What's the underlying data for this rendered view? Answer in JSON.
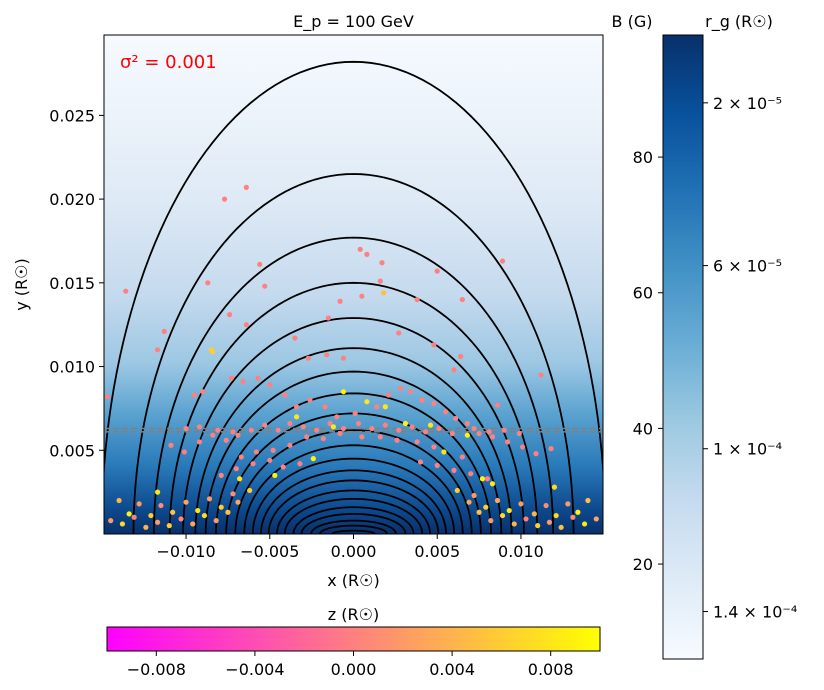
{
  "chart_data": {
    "type": "scatter",
    "title": "E_p = 100 GeV",
    "annotation": {
      "text": "σ² = 0.001",
      "color": "#ff0000"
    },
    "xlabel": "x (R☉)",
    "ylabel": "y (R☉)",
    "xlim": [
      -0.0149,
      0.0149
    ],
    "ylim": [
      0.0,
      0.0298
    ],
    "xticks": [
      -0.01,
      -0.005,
      0.0,
      0.005,
      0.01
    ],
    "xtick_labels": [
      "−0.010",
      "−0.005",
      "0.000",
      "0.005",
      "0.010"
    ],
    "yticks": [
      0.005,
      0.01,
      0.015,
      0.02,
      0.025
    ],
    "ytick_labels": [
      "0.005",
      "0.010",
      "0.015",
      "0.020",
      "0.025"
    ],
    "field_lines": {
      "description": "closed dipole-like magnetic loops, half-width proportional to sqrt(apex height)",
      "apex_heights": [
        0.0282,
        0.0215,
        0.0177,
        0.015,
        0.0129,
        0.0111,
        0.0097,
        0.0084,
        0.0072,
        0.0062,
        0.0053,
        0.0045,
        0.0038,
        0.0032,
        0.0026,
        0.0021,
        0.0016,
        0.0012,
        0.0008,
        0.0005,
        0.0002
      ],
      "color": "#000000"
    },
    "dashed_lines": [
      {
        "y": 0.0063,
        "color": "#808080",
        "style": "dashed"
      },
      {
        "y": 0.0061,
        "color": "#808080",
        "style": "dashed"
      }
    ],
    "particles_colored_by": "z (R☉)",
    "particles": [
      [
        -0.0136,
        0.0145,
        0.0
      ],
      [
        -0.0113,
        0.0121,
        0.0
      ],
      [
        -0.0117,
        0.011,
        0.0
      ],
      [
        -0.0147,
        0.0082,
        0.0
      ],
      [
        -0.0087,
        0.015,
        0.0
      ],
      [
        -0.0085,
        0.011,
        0.006
      ],
      [
        -0.0074,
        0.0131,
        0.0
      ],
      [
        -0.0064,
        0.0125,
        0.0
      ],
      [
        -0.0077,
        0.02,
        0.0
      ],
      [
        -0.0064,
        0.0207,
        0.0
      ],
      [
        -0.0056,
        0.0161,
        0.0
      ],
      [
        -0.0053,
        0.0148,
        0.0
      ],
      [
        -0.0035,
        0.0117,
        0.0
      ],
      [
        -0.0027,
        0.0105,
        0.0
      ],
      [
        -0.0016,
        0.0107,
        0.0
      ],
      [
        -0.0006,
        0.0105,
        0.0
      ],
      [
        -0.0008,
        0.0139,
        0.0
      ],
      [
        -0.0015,
        0.0129,
        0.0
      ],
      [
        0.0005,
        0.0142,
        0.0
      ],
      [
        0.0004,
        0.017,
        0.0
      ],
      [
        0.0008,
        0.0167,
        0.0
      ],
      [
        0.0017,
        0.0162,
        0.0
      ],
      [
        0.0016,
        0.0151,
        0.0
      ],
      [
        0.0018,
        0.0144,
        0.005
      ],
      [
        0.0027,
        0.012,
        0.0
      ],
      [
        0.0038,
        0.014,
        0.0
      ],
      [
        0.0048,
        0.0113,
        0.0
      ],
      [
        0.005,
        0.0157,
        0.0
      ],
      [
        0.0065,
        0.014,
        0.0
      ],
      [
        0.0064,
        0.0106,
        0.0
      ],
      [
        0.006,
        0.0098,
        0.0
      ],
      [
        0.0089,
        0.0163,
        0.0
      ],
      [
        0.0112,
        0.0095,
        0.0
      ],
      [
        0.0086,
        0.0077,
        0.0
      ],
      [
        -0.009,
        0.0085,
        0.0
      ],
      [
        -0.0095,
        0.0083,
        0.0
      ],
      [
        -0.0073,
        0.0093,
        0.0
      ],
      [
        -0.0066,
        0.0091,
        0.0
      ],
      [
        -0.0057,
        0.0093,
        0.0
      ],
      [
        -0.005,
        0.0089,
        0.0
      ],
      [
        -0.0041,
        0.0083,
        0.0
      ],
      [
        -0.0034,
        0.0076,
        0.0
      ],
      [
        -0.0026,
        0.008,
        0.0
      ],
      [
        -0.0017,
        0.0076,
        0.0
      ],
      [
        -0.001,
        0.007,
        0.0
      ],
      [
        0.0001,
        0.0072,
        0.0
      ],
      [
        0.0008,
        0.0079,
        0.008
      ],
      [
        0.0014,
        0.0076,
        0.0
      ],
      [
        0.0021,
        0.0083,
        0.0
      ],
      [
        0.0028,
        0.0087,
        0.0
      ],
      [
        0.0034,
        0.0085,
        0.0
      ],
      [
        0.0041,
        0.008,
        0.0
      ],
      [
        0.0048,
        0.0078,
        0.0
      ],
      [
        0.0055,
        0.0073,
        0.0
      ],
      [
        0.0061,
        0.0069,
        0.0
      ],
      [
        0.0068,
        0.0066,
        0.0
      ],
      [
        0.0075,
        0.006,
        0.0
      ],
      [
        0.0083,
        0.0058,
        0.0
      ],
      [
        0.0092,
        0.0055,
        0.0
      ],
      [
        0.0101,
        0.0052,
        0.0
      ],
      [
        0.0109,
        0.0048,
        0.0
      ],
      [
        0.0118,
        0.0051,
        0.0
      ],
      [
        -0.0109,
        0.0053,
        0.0
      ],
      [
        -0.0101,
        0.0049,
        0.0
      ],
      [
        -0.0092,
        0.0055,
        0.0
      ],
      [
        -0.0084,
        0.0059,
        0.0
      ],
      [
        -0.0076,
        0.0056,
        0.0
      ],
      [
        -0.0069,
        0.0059,
        0.0
      ],
      [
        -0.0061,
        0.0062,
        0.0
      ],
      [
        -0.0053,
        0.0065,
        0.0
      ],
      [
        -0.0045,
        0.0062,
        0.0
      ],
      [
        -0.0038,
        0.0066,
        0.0
      ],
      [
        -0.003,
        0.0064,
        0.0
      ],
      [
        -0.0022,
        0.0062,
        0.0
      ],
      [
        -0.0014,
        0.0066,
        0.0
      ],
      [
        -0.0006,
        0.0063,
        0.0
      ],
      [
        0.0003,
        0.0066,
        0.0
      ],
      [
        0.0011,
        0.0063,
        0.0
      ],
      [
        0.0019,
        0.0065,
        0.0
      ],
      [
        0.0027,
        0.0062,
        0.0
      ],
      [
        0.0035,
        0.0064,
        0.0
      ],
      [
        0.0043,
        0.0061,
        0.0
      ],
      [
        0.0051,
        0.0063,
        0.0
      ],
      [
        0.0059,
        0.006,
        0.0
      ],
      [
        -0.01,
        0.0063,
        0.0
      ],
      [
        -0.0092,
        0.0064,
        0.0
      ],
      [
        -0.0081,
        0.0062,
        0.0
      ],
      [
        -0.0072,
        0.0061,
        0.0
      ],
      [
        0.0072,
        0.0063,
        0.0
      ],
      [
        0.0081,
        0.0061,
        0.0
      ],
      [
        0.009,
        0.0062,
        0.0
      ],
      [
        0.0099,
        0.006,
        0.0
      ],
      [
        -0.0028,
        0.0058,
        0.0
      ],
      [
        -0.0018,
        0.0057,
        0.0
      ],
      [
        -0.0008,
        0.006,
        0.0
      ],
      [
        0.0005,
        0.0058,
        0.0
      ],
      [
        0.0016,
        0.0058,
        0.0
      ],
      [
        0.0026,
        0.0056,
        0.0
      ],
      [
        0.0038,
        0.0055,
        0.0
      ],
      [
        0.0048,
        0.0052,
        0.0
      ],
      [
        -0.0038,
        0.0053,
        0.0
      ],
      [
        -0.0048,
        0.005,
        0.0
      ],
      [
        -0.0058,
        0.0049,
        0.0
      ],
      [
        -0.0067,
        0.0046,
        0.0
      ],
      [
        -0.005,
        0.0044,
        0.0
      ],
      [
        -0.006,
        0.0042,
        0.0
      ],
      [
        -0.007,
        0.0039,
        0.0
      ],
      [
        -0.0079,
        0.0035,
        0.0
      ],
      [
        -0.0042,
        0.004,
        0.0
      ],
      [
        -0.0032,
        0.0042,
        0.0
      ],
      [
        0.004,
        0.0043,
        0.0
      ],
      [
        0.005,
        0.0041,
        0.0
      ],
      [
        0.006,
        0.0038,
        0.0
      ],
      [
        0.007,
        0.0036,
        0.0
      ],
      [
        0.008,
        0.0033,
        0.0
      ],
      [
        0.0065,
        0.0046,
        0.0
      ],
      [
        -0.0084,
        0.0109,
        0.006
      ],
      [
        -0.0006,
        0.0085,
        0.009
      ],
      [
        0.0019,
        0.0076,
        0.008
      ],
      [
        -0.0034,
        0.007,
        0.008
      ],
      [
        -0.0024,
        0.0045,
        0.009
      ],
      [
        0.0046,
        0.0065,
        0.008
      ],
      [
        0.0031,
        0.0066,
        0.009
      ],
      [
        0.0068,
        0.0059,
        0.009
      ],
      [
        -0.0047,
        0.0035,
        0.009
      ],
      [
        -0.0068,
        0.0033,
        0.008
      ],
      [
        0.0054,
        0.0049,
        0.008
      ],
      [
        -0.0012,
        0.0064,
        0.008
      ],
      [
        -0.014,
        0.002,
        0.004
      ],
      [
        -0.0134,
        0.0012,
        0.009
      ],
      [
        -0.0128,
        0.0018,
        0.002
      ],
      [
        -0.0121,
        0.0011,
        0.006
      ],
      [
        -0.0115,
        0.0017,
        0.001
      ],
      [
        -0.0108,
        0.0013,
        0.005
      ],
      [
        -0.01,
        0.0019,
        0.003
      ],
      [
        -0.0093,
        0.0014,
        0.008
      ],
      [
        -0.0086,
        0.0021,
        0.002
      ],
      [
        -0.0079,
        0.0016,
        0.006
      ],
      [
        -0.0072,
        0.0024,
        0.001
      ],
      [
        -0.0145,
        0.0008,
        0.002
      ],
      [
        -0.0138,
        0.0006,
        0.007
      ],
      [
        -0.0131,
        0.001,
        0.0
      ],
      [
        -0.0124,
        0.0004,
        0.004
      ],
      [
        -0.0117,
        0.0007,
        0.002
      ],
      [
        -0.011,
        0.0005,
        0.006
      ],
      [
        -0.0103,
        0.0009,
        0.001
      ],
      [
        -0.0096,
        0.0006,
        0.003
      ],
      [
        -0.0089,
        0.0011,
        0.007
      ],
      [
        -0.0082,
        0.0008,
        0.002
      ],
      [
        -0.0075,
        0.0013,
        0.005
      ],
      [
        -0.0069,
        0.0019,
        0.003
      ],
      [
        -0.0062,
        0.0026,
        0.006
      ],
      [
        0.014,
        0.002,
        0.005
      ],
      [
        0.0134,
        0.0013,
        0.009
      ],
      [
        0.0128,
        0.0018,
        0.002
      ],
      [
        0.0121,
        0.0011,
        0.007
      ],
      [
        0.0115,
        0.0017,
        0.001
      ],
      [
        0.0108,
        0.0012,
        0.004
      ],
      [
        0.01,
        0.0018,
        0.002
      ],
      [
        0.0093,
        0.0014,
        0.008
      ],
      [
        0.0086,
        0.002,
        0.003
      ],
      [
        0.0079,
        0.0016,
        0.006
      ],
      [
        0.0072,
        0.0023,
        0.002
      ],
      [
        0.0145,
        0.0009,
        0.003
      ],
      [
        0.0138,
        0.0006,
        0.008
      ],
      [
        0.0131,
        0.001,
        0.001
      ],
      [
        0.0124,
        0.0004,
        0.005
      ],
      [
        0.0117,
        0.0007,
        0.002
      ],
      [
        0.011,
        0.0005,
        0.006
      ],
      [
        0.0103,
        0.0009,
        0.0
      ],
      [
        0.0096,
        0.0006,
        0.004
      ],
      [
        0.0089,
        0.0011,
        0.007
      ],
      [
        0.0082,
        0.0008,
        0.002
      ],
      [
        0.0075,
        0.0013,
        0.005
      ],
      [
        0.0069,
        0.0019,
        0.003
      ],
      [
        0.0062,
        0.0026,
        0.006
      ],
      [
        0.0083,
        0.003,
        0.008
      ],
      [
        0.0077,
        0.0033,
        0.009
      ],
      [
        0.012,
        0.0028,
        0.007
      ],
      [
        -0.0117,
        0.0025,
        0.008
      ]
    ],
    "colorbar_z": {
      "label": "z (R☉)",
      "range": [
        -0.01,
        0.01
      ],
      "ticks": [
        -0.008,
        -0.004,
        0.0,
        0.004,
        0.008
      ],
      "tick_labels": [
        "−0.008",
        "−0.004",
        "0.000",
        "0.004",
        "0.008"
      ],
      "colors": [
        "#ff00ff",
        "#ff8080",
        "#ffff00"
      ]
    },
    "colorbar_B": {
      "label_left": "B (G)",
      "label_right": "r_g (R☉)",
      "range": [
        6,
        98
      ],
      "left_ticks": [
        20,
        40,
        60,
        80
      ],
      "left_tick_labels": [
        "20",
        "40",
        "60",
        "80"
      ],
      "right_ticks": [
        {
          "at": 13,
          "label": "1.4 × 10⁻⁴"
        },
        {
          "at": 37,
          "label": "1 × 10⁻⁴"
        },
        {
          "at": 64,
          "label": "6 × 10⁻⁵"
        },
        {
          "at": 88,
          "label": "2 × 10⁻⁵"
        }
      ],
      "colors": [
        "#f7fbff",
        "#deebf7",
        "#c6dbef",
        "#9ecae1",
        "#6baed6",
        "#4292c6",
        "#2171b5",
        "#08519c",
        "#08306b"
      ]
    }
  }
}
